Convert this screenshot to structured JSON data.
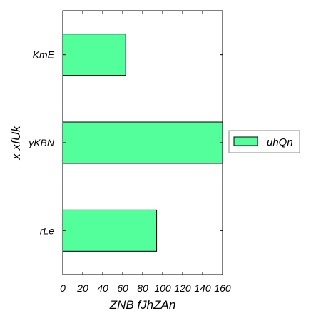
{
  "chart_data": {
    "type": "bar",
    "orientation": "horizontal",
    "categories": [
      "KmE",
      "yKBN",
      "rLe"
    ],
    "series": [
      {
        "name": "uhQn",
        "values": [
          63,
          160,
          94
        ],
        "color": "#52ff9a"
      }
    ],
    "xlabel": "ZNB fJhZAn",
    "ylabel": "x xfUk",
    "xlim": [
      0,
      160
    ],
    "xticks": [
      0,
      20,
      40,
      60,
      80,
      100,
      120,
      140,
      160
    ],
    "grid": false,
    "legend_position": "right"
  }
}
